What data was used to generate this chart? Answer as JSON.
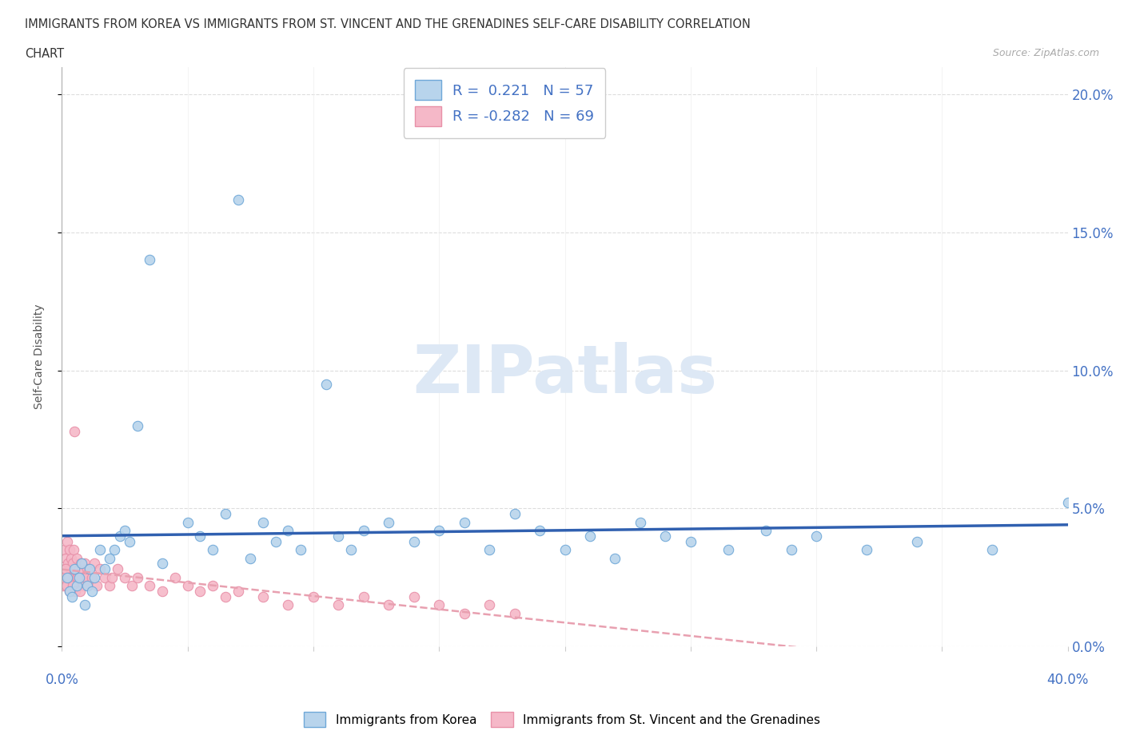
{
  "title_line1": "IMMIGRANTS FROM KOREA VS IMMIGRANTS FROM ST. VINCENT AND THE GRENADINES SELF-CARE DISABILITY CORRELATION",
  "title_line2": "CHART",
  "source": "Source: ZipAtlas.com",
  "ylabel": "Self-Care Disability",
  "ytick_values": [
    0.0,
    5.0,
    10.0,
    15.0,
    20.0
  ],
  "xrange": [
    0.0,
    40.0
  ],
  "yrange": [
    0.0,
    21.0
  ],
  "korea_R": 0.221,
  "korea_N": 57,
  "svg_R": -0.282,
  "svg_N": 69,
  "korea_color": "#b8d4ec",
  "korea_edge_color": "#6fa8d8",
  "svg_color": "#f5b8c8",
  "svg_edge_color": "#e890a8",
  "korea_line_color": "#3060b0",
  "svg_line_color": "#e8a0b0",
  "watermark": "ZIPatlas",
  "legend_label_korea": "Immigrants from Korea",
  "legend_label_svg": "Immigrants from St. Vincent and the Grenadines",
  "korea_x": [
    0.2,
    0.3,
    0.4,
    0.5,
    0.6,
    0.7,
    0.8,
    0.9,
    1.0,
    1.1,
    1.2,
    1.3,
    1.5,
    1.7,
    1.9,
    2.1,
    2.3,
    2.5,
    2.7,
    3.0,
    3.5,
    4.0,
    5.0,
    5.5,
    6.0,
    6.5,
    7.0,
    7.5,
    8.0,
    8.5,
    9.0,
    9.5,
    10.5,
    11.0,
    11.5,
    12.0,
    13.0,
    14.0,
    15.0,
    16.0,
    17.0,
    18.0,
    19.0,
    20.0,
    21.0,
    22.0,
    23.0,
    24.0,
    25.0,
    26.5,
    28.0,
    29.0,
    30.0,
    32.0,
    34.0,
    37.0,
    40.0
  ],
  "korea_y": [
    2.5,
    2.0,
    1.8,
    2.8,
    2.2,
    2.5,
    3.0,
    1.5,
    2.2,
    2.8,
    2.0,
    2.5,
    3.5,
    2.8,
    3.2,
    3.5,
    4.0,
    4.2,
    3.8,
    8.0,
    14.0,
    3.0,
    4.5,
    4.0,
    3.5,
    4.8,
    16.2,
    3.2,
    4.5,
    3.8,
    4.2,
    3.5,
    9.5,
    4.0,
    3.5,
    4.2,
    4.5,
    3.8,
    4.2,
    4.5,
    3.5,
    4.8,
    4.2,
    3.5,
    4.0,
    3.2,
    4.5,
    4.0,
    3.8,
    3.5,
    4.2,
    3.5,
    4.0,
    3.5,
    3.8,
    3.5,
    5.2
  ],
  "svg_x": [
    0.05,
    0.1,
    0.12,
    0.15,
    0.18,
    0.2,
    0.22,
    0.25,
    0.28,
    0.3,
    0.32,
    0.35,
    0.38,
    0.4,
    0.42,
    0.45,
    0.48,
    0.5,
    0.55,
    0.6,
    0.65,
    0.7,
    0.75,
    0.8,
    0.85,
    0.9,
    0.95,
    1.0,
    1.05,
    1.1,
    1.2,
    1.3,
    1.4,
    1.5,
    1.7,
    1.9,
    2.0,
    2.2,
    2.5,
    2.8,
    3.0,
    3.5,
    4.0,
    4.5,
    5.0,
    5.5,
    6.0,
    6.5,
    7.0,
    8.0,
    9.0,
    10.0,
    11.0,
    12.0,
    13.0,
    14.0,
    15.0,
    16.0,
    17.0,
    18.0,
    0.08,
    0.14,
    0.19,
    0.26,
    0.33,
    0.43,
    0.52,
    0.62,
    0.72
  ],
  "svg_y": [
    2.2,
    3.5,
    2.8,
    3.2,
    2.5,
    3.8,
    2.2,
    3.0,
    2.5,
    3.5,
    2.0,
    2.8,
    3.2,
    2.5,
    3.0,
    2.2,
    3.5,
    7.8,
    2.8,
    3.2,
    2.5,
    2.8,
    3.0,
    2.5,
    2.2,
    3.0,
    2.5,
    2.8,
    2.2,
    2.8,
    2.5,
    3.0,
    2.2,
    2.8,
    2.5,
    2.2,
    2.5,
    2.8,
    2.5,
    2.2,
    2.5,
    2.2,
    2.0,
    2.5,
    2.2,
    2.0,
    2.2,
    1.8,
    2.0,
    1.8,
    1.5,
    1.8,
    1.5,
    1.8,
    1.5,
    1.8,
    1.5,
    1.2,
    1.5,
    1.2,
    2.5,
    2.8,
    2.2,
    2.5,
    2.0,
    2.2,
    2.0,
    2.5,
    2.0
  ]
}
